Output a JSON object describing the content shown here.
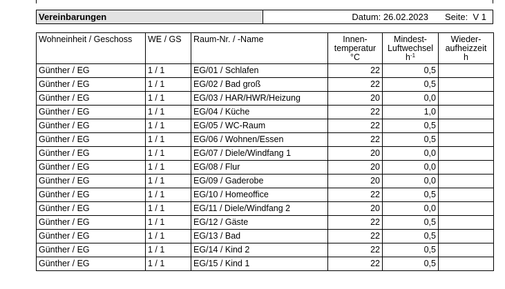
{
  "header": {
    "title": "Vereinbarungen",
    "datum_label": "Datum:",
    "datum_value": "26.02.2023",
    "seite_label": "Seite:",
    "seite_value": "V 1"
  },
  "table": {
    "columns": [
      [
        "Wohneinheit / Geschoss"
      ],
      [
        "WE / GS"
      ],
      [
        "Raum-Nr. / -Name"
      ],
      [
        "Innen-",
        "temperatur",
        "°C"
      ],
      [
        "Mindest-",
        "Luftwechsel",
        "h-1"
      ],
      [
        "Wieder-",
        "aufheizzeit",
        "h"
      ]
    ],
    "rows": [
      {
        "wohneinheit": "Günther / EG",
        "we_gs": "1 / 1",
        "raum": "EG/01 / Schlafen",
        "temp": "22",
        "luftwechsel": "0,5",
        "aufheiz": ""
      },
      {
        "wohneinheit": "Günther / EG",
        "we_gs": "1 / 1",
        "raum": "EG/02 / Bad groß",
        "temp": "22",
        "luftwechsel": "0,5",
        "aufheiz": ""
      },
      {
        "wohneinheit": "Günther / EG",
        "we_gs": "1 / 1",
        "raum": "EG/03 / HAR/HWR/Heizung",
        "temp": "20",
        "luftwechsel": "0,0",
        "aufheiz": ""
      },
      {
        "wohneinheit": "Günther / EG",
        "we_gs": "1 / 1",
        "raum": "EG/04 / Küche",
        "temp": "22",
        "luftwechsel": "1,0",
        "aufheiz": ""
      },
      {
        "wohneinheit": "Günther / EG",
        "we_gs": "1 / 1",
        "raum": "EG/05 / WC-Raum",
        "temp": "22",
        "luftwechsel": "0,5",
        "aufheiz": ""
      },
      {
        "wohneinheit": "Günther / EG",
        "we_gs": "1 / 1",
        "raum": "EG/06 / Wohnen/Essen",
        "temp": "22",
        "luftwechsel": "0,5",
        "aufheiz": ""
      },
      {
        "wohneinheit": "Günther / EG",
        "we_gs": "1 / 1",
        "raum": "EG/07 / Diele/Windfang 1",
        "temp": "20",
        "luftwechsel": "0,0",
        "aufheiz": ""
      },
      {
        "wohneinheit": "Günther / EG",
        "we_gs": "1 / 1",
        "raum": "EG/08 / Flur",
        "temp": "20",
        "luftwechsel": "0,0",
        "aufheiz": ""
      },
      {
        "wohneinheit": "Günther / EG",
        "we_gs": "1 / 1",
        "raum": "EG/09 / Gaderobe",
        "temp": "20",
        "luftwechsel": "0,0",
        "aufheiz": ""
      },
      {
        "wohneinheit": "Günther / EG",
        "we_gs": "1 / 1",
        "raum": "EG/10 / Homeoffice",
        "temp": "22",
        "luftwechsel": "0,5",
        "aufheiz": ""
      },
      {
        "wohneinheit": "Günther / EG",
        "we_gs": "1 / 1",
        "raum": "EG/11 / Diele/Windfang 2",
        "temp": "20",
        "luftwechsel": "0,0",
        "aufheiz": ""
      },
      {
        "wohneinheit": "Günther / EG",
        "we_gs": "1 / 1",
        "raum": "EG/12 / Gäste",
        "temp": "22",
        "luftwechsel": "0,5",
        "aufheiz": ""
      },
      {
        "wohneinheit": "Günther / EG",
        "we_gs": "1 / 1",
        "raum": "EG/13 / Bad",
        "temp": "22",
        "luftwechsel": "0,5",
        "aufheiz": ""
      },
      {
        "wohneinheit": "Günther / EG",
        "we_gs": "1 / 1",
        "raum": "EG/14 / Kind 2",
        "temp": "22",
        "luftwechsel": "0,5",
        "aufheiz": ""
      },
      {
        "wohneinheit": "Günther / EG",
        "we_gs": "1 / 1",
        "raum": "EG/15 / Kind 1",
        "temp": "22",
        "luftwechsel": "0,5",
        "aufheiz": ""
      }
    ]
  }
}
